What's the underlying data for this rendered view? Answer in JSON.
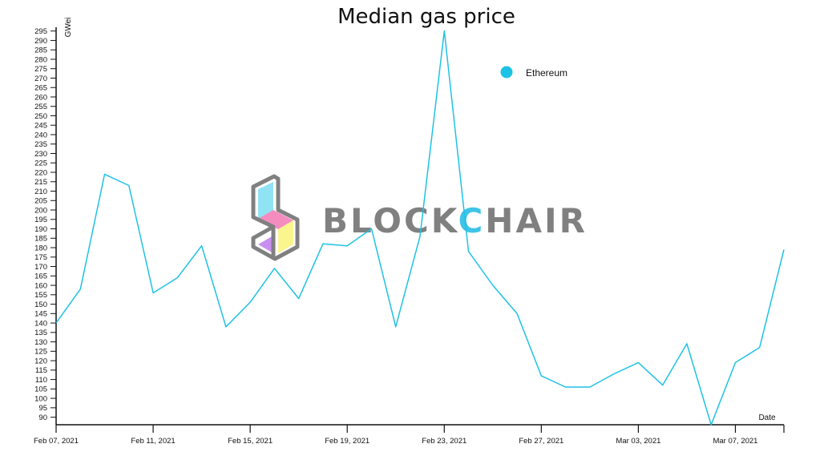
{
  "chart_data": {
    "type": "line",
    "title": "Median gas price",
    "xlabel": "Date",
    "ylabel": "GWei",
    "ylim": [
      86,
      297
    ],
    "yticks": [
      90,
      95,
      100,
      105,
      110,
      115,
      120,
      125,
      130,
      135,
      140,
      145,
      150,
      155,
      160,
      165,
      170,
      175,
      180,
      185,
      190,
      195,
      200,
      205,
      210,
      215,
      220,
      225,
      230,
      235,
      240,
      245,
      250,
      255,
      260,
      265,
      270,
      275,
      280,
      285,
      290,
      295
    ],
    "xtick_labels": [
      "Feb 07, 2021",
      "Feb 11, 2021",
      "Feb 15, 2021",
      "Feb 19, 2021",
      "Feb 23, 2021",
      "Feb 27, 2021",
      "Mar 03, 2021",
      "Mar 07, 2021"
    ],
    "x": [
      "2021-02-07",
      "2021-02-08",
      "2021-02-09",
      "2021-02-10",
      "2021-02-11",
      "2021-02-12",
      "2021-02-13",
      "2021-02-14",
      "2021-02-15",
      "2021-02-16",
      "2021-02-17",
      "2021-02-18",
      "2021-02-19",
      "2021-02-20",
      "2021-02-21",
      "2021-02-22",
      "2021-02-23",
      "2021-02-24",
      "2021-02-25",
      "2021-02-26",
      "2021-02-27",
      "2021-02-28",
      "2021-03-01",
      "2021-03-02",
      "2021-03-03",
      "2021-03-04",
      "2021-03-05",
      "2021-03-06",
      "2021-03-07",
      "2021-03-08",
      "2021-03-09"
    ],
    "series": [
      {
        "name": "Ethereum",
        "color": "#1ec2e4",
        "values": [
          140,
          158,
          219,
          213,
          156,
          164,
          181,
          138,
          151,
          169,
          153,
          182,
          181,
          190,
          138,
          186,
          295,
          178,
          160,
          145,
          112,
          106,
          106,
          113,
          119,
          107,
          129,
          86,
          119,
          127,
          179
        ]
      }
    ],
    "legend": {
      "position": "top-right",
      "items": [
        {
          "label": "Ethereum",
          "color": "#1ec2e4"
        }
      ]
    },
    "grid": false
  },
  "watermark": {
    "text": "BLOCKCHAIR",
    "text_highlight": "C",
    "text_color": "#808080",
    "highlight_color": "#3fc3e6",
    "logo_colors": {
      "frame": "#808080",
      "cyan": "#8fe3f3",
      "pink": "#f58cc0",
      "purple": "#c98ff0",
      "yellow": "#fbf58d"
    }
  }
}
